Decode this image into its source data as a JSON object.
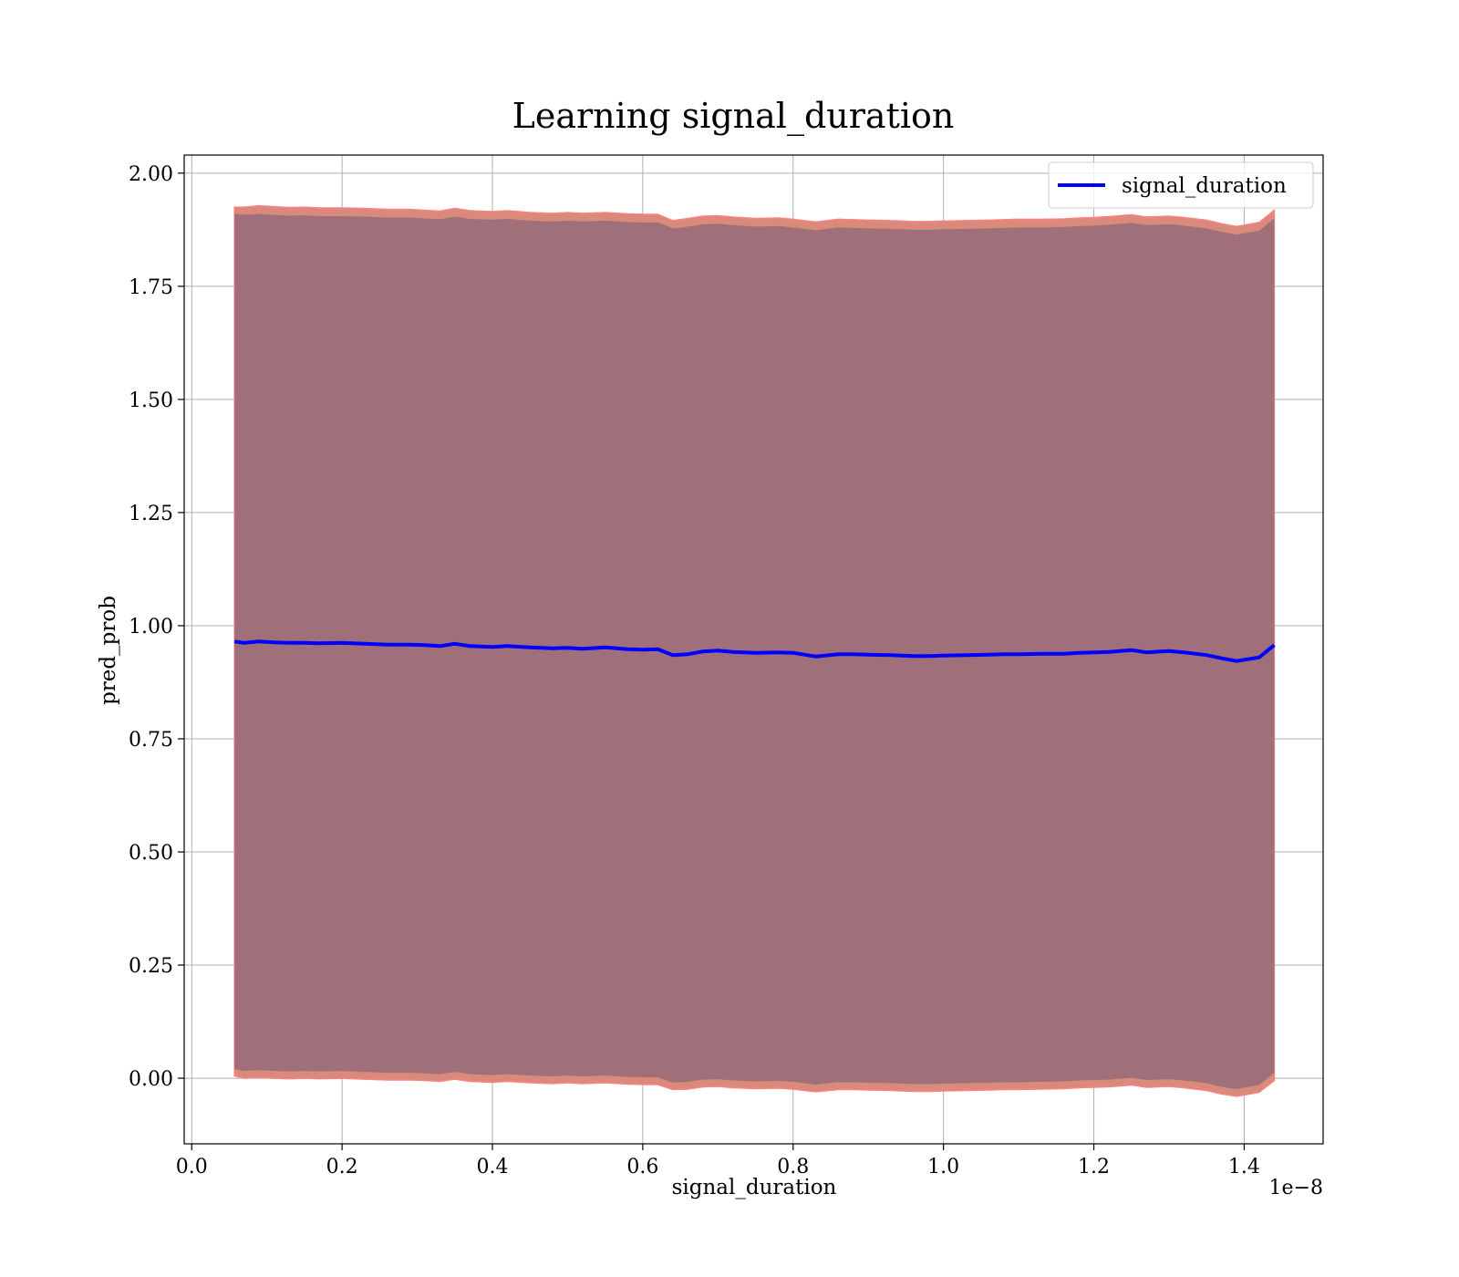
{
  "chart_data": {
    "type": "line",
    "title": "Learning signal_duration",
    "xlabel": "signal_duration",
    "ylabel": "pred_prob",
    "x_offset_text": "1e−8",
    "xlim": [
      -0.01,
      1.505
    ],
    "ylim": [
      -0.145,
      2.04
    ],
    "xticks": [
      0.0,
      0.2,
      0.4,
      0.6,
      0.8,
      1.0,
      1.2,
      1.4
    ],
    "xtick_labels": [
      "0.0",
      "0.2",
      "0.4",
      "0.6",
      "0.8",
      "1.0",
      "1.2",
      "1.4"
    ],
    "yticks": [
      0.0,
      0.25,
      0.5,
      0.75,
      1.0,
      1.25,
      1.5,
      1.75,
      2.0
    ],
    "ytick_labels": [
      "0.00",
      "0.25",
      "0.50",
      "0.75",
      "1.00",
      "1.25",
      "1.50",
      "1.75",
      "2.00"
    ],
    "grid": true,
    "legend_position": "top-right",
    "colors": {
      "line": "#0000ff",
      "band_outer": "#d98a7a",
      "band_outer_edge": "#ff8080",
      "band_inner": "#a0707a",
      "grid": "#b0b0b0"
    },
    "series": [
      {
        "name": "signal_duration",
        "x": [
          0.057,
          0.07,
          0.09,
          0.11,
          0.13,
          0.15,
          0.17,
          0.2,
          0.23,
          0.26,
          0.29,
          0.31,
          0.33,
          0.35,
          0.37,
          0.4,
          0.42,
          0.45,
          0.48,
          0.5,
          0.52,
          0.55,
          0.58,
          0.6,
          0.62,
          0.64,
          0.66,
          0.68,
          0.7,
          0.72,
          0.75,
          0.78,
          0.8,
          0.83,
          0.86,
          0.88,
          0.9,
          0.93,
          0.96,
          0.98,
          1.0,
          1.03,
          1.06,
          1.08,
          1.1,
          1.13,
          1.16,
          1.18,
          1.2,
          1.22,
          1.25,
          1.27,
          1.3,
          1.32,
          1.35,
          1.37,
          1.39,
          1.42,
          1.44
        ],
        "y": [
          0.965,
          0.962,
          0.965,
          0.963,
          0.962,
          0.962,
          0.961,
          0.962,
          0.96,
          0.958,
          0.958,
          0.957,
          0.955,
          0.96,
          0.955,
          0.953,
          0.955,
          0.952,
          0.95,
          0.951,
          0.949,
          0.952,
          0.948,
          0.947,
          0.948,
          0.935,
          0.937,
          0.943,
          0.945,
          0.942,
          0.94,
          0.941,
          0.94,
          0.932,
          0.937,
          0.937,
          0.936,
          0.935,
          0.933,
          0.933,
          0.934,
          0.935,
          0.936,
          0.937,
          0.937,
          0.938,
          0.938,
          0.94,
          0.941,
          0.942,
          0.946,
          0.941,
          0.944,
          0.941,
          0.935,
          0.928,
          0.922,
          0.93,
          0.957
        ],
        "band_outer_upper": [
          1.925,
          1.925,
          1.928,
          1.926,
          1.924,
          1.925,
          1.923,
          1.923,
          1.922,
          1.92,
          1.92,
          1.918,
          1.916,
          1.922,
          1.917,
          1.915,
          1.917,
          1.913,
          1.911,
          1.913,
          1.911,
          1.913,
          1.91,
          1.909,
          1.909,
          1.895,
          1.9,
          1.905,
          1.906,
          1.903,
          1.9,
          1.901,
          1.898,
          1.892,
          1.898,
          1.897,
          1.896,
          1.895,
          1.893,
          1.893,
          1.894,
          1.895,
          1.896,
          1.897,
          1.898,
          1.898,
          1.899,
          1.901,
          1.902,
          1.904,
          1.908,
          1.903,
          1.905,
          1.902,
          1.896,
          1.888,
          1.882,
          1.891,
          1.918
        ],
        "band_outer_lower": [
          0.005,
          0.0,
          0.002,
          0.0,
          -0.001,
          0.0,
          -0.001,
          0.0,
          -0.002,
          -0.004,
          -0.004,
          -0.005,
          -0.007,
          -0.002,
          -0.007,
          -0.009,
          -0.007,
          -0.01,
          -0.012,
          -0.01,
          -0.012,
          -0.01,
          -0.013,
          -0.014,
          -0.014,
          -0.025,
          -0.024,
          -0.019,
          -0.018,
          -0.021,
          -0.023,
          -0.022,
          -0.024,
          -0.03,
          -0.025,
          -0.025,
          -0.026,
          -0.027,
          -0.029,
          -0.029,
          -0.028,
          -0.027,
          -0.026,
          -0.025,
          -0.025,
          -0.024,
          -0.023,
          -0.021,
          -0.02,
          -0.019,
          -0.015,
          -0.02,
          -0.018,
          -0.021,
          -0.027,
          -0.035,
          -0.04,
          -0.031,
          -0.005
        ],
        "band_inner_upper": [
          1.91,
          1.908,
          1.91,
          1.908,
          1.906,
          1.907,
          1.905,
          1.905,
          1.904,
          1.902,
          1.902,
          1.9,
          1.898,
          1.904,
          1.899,
          1.897,
          1.899,
          1.895,
          1.893,
          1.895,
          1.893,
          1.895,
          1.892,
          1.891,
          1.891,
          1.878,
          1.882,
          1.887,
          1.888,
          1.885,
          1.882,
          1.883,
          1.88,
          1.874,
          1.88,
          1.879,
          1.878,
          1.877,
          1.875,
          1.875,
          1.876,
          1.877,
          1.878,
          1.879,
          1.88,
          1.88,
          1.881,
          1.883,
          1.884,
          1.886,
          1.89,
          1.885,
          1.887,
          1.884,
          1.878,
          1.87,
          1.864,
          1.873,
          1.9
        ],
        "band_inner_lower": [
          0.02,
          0.016,
          0.018,
          0.016,
          0.015,
          0.016,
          0.015,
          0.016,
          0.014,
          0.012,
          0.012,
          0.011,
          0.009,
          0.014,
          0.009,
          0.007,
          0.009,
          0.006,
          0.004,
          0.006,
          0.004,
          0.006,
          0.003,
          0.002,
          0.002,
          -0.01,
          -0.008,
          -0.003,
          -0.002,
          -0.005,
          -0.007,
          -0.006,
          -0.008,
          -0.014,
          -0.009,
          -0.009,
          -0.01,
          -0.011,
          -0.013,
          -0.013,
          -0.012,
          -0.011,
          -0.01,
          -0.009,
          -0.009,
          -0.008,
          -0.007,
          -0.005,
          -0.004,
          -0.003,
          0.001,
          -0.004,
          -0.002,
          -0.005,
          -0.011,
          -0.019,
          -0.024,
          -0.015,
          0.012
        ]
      }
    ]
  }
}
